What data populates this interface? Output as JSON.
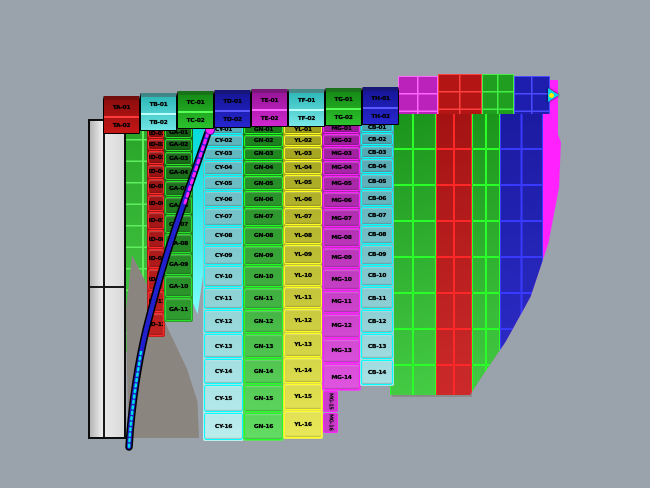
{
  "viewport": {
    "app_hint": "3d-cad-viewport",
    "colors": {
      "background": "#9aa2ab",
      "shadow": "#8a857f",
      "slab_fill": "#dcdcdc",
      "slab_edge": "#0d0d0d"
    }
  },
  "top_row": [
    {
      "name": "red-block",
      "fill_top": "#8f0e0e",
      "fill_bottom": "#c41616",
      "line": "#ff3a3a",
      "labels": [
        "TA-01",
        "TA-02"
      ]
    },
    {
      "name": "cyan-block",
      "fill_top": "#2fb9b9",
      "fill_bottom": "#6fe4e4",
      "line": "#bdffff",
      "labels": [
        "TB-01",
        "TB-02"
      ]
    },
    {
      "name": "green-block",
      "fill_top": "#168c16",
      "fill_bottom": "#2cc22c",
      "line": "#55ff55",
      "labels": [
        "TC-01",
        "TC-02"
      ]
    },
    {
      "name": "blue-block",
      "fill_top": "#16169a",
      "fill_bottom": "#2626cf",
      "line": "#5a5aff",
      "labels": [
        "TD-01",
        "TD-02"
      ]
    },
    {
      "name": "magenta-block",
      "fill_top": "#9a169a",
      "fill_bottom": "#cf26cf",
      "line": "#ff66ff",
      "labels": [
        "TE-01",
        "TE-02"
      ]
    },
    {
      "name": "cyan-block",
      "fill_top": "#2fb9b9",
      "fill_bottom": "#79e8e8",
      "line": "#bdffff",
      "labels": [
        "TF-01",
        "TF-02"
      ]
    },
    {
      "name": "green-block",
      "fill_top": "#168c16",
      "fill_bottom": "#2cc22c",
      "line": "#55ff55",
      "labels": [
        "TG-01",
        "TG-02"
      ]
    },
    {
      "name": "blue-block",
      "fill_top": "#16169a",
      "fill_bottom": "#2626cf",
      "line": "#5a5aff",
      "labels": [
        "TH-01",
        "TH-02"
      ]
    }
  ],
  "columns": [
    {
      "name": "red-column",
      "border": "#ff2a2a",
      "fill_top": "#8e1010",
      "fill_bottom": "#c02020",
      "labels": [
        "RD-01",
        "RD-02",
        "RD-03",
        "RD-04",
        "RD-05",
        "RD-06",
        "RD-07",
        "RD-08",
        "RD-09",
        "RD-10",
        "RD-11",
        "RD-12"
      ]
    },
    {
      "name": "dark-green-column",
      "border": "#2ae02a",
      "fill_top": "#145f14",
      "fill_bottom": "#2f9e2f",
      "labels": [
        "GA-01",
        "GA-02",
        "GA-03",
        "GA-04",
        "GA-05",
        "GA-06",
        "GA-07",
        "GA-08",
        "GA-09",
        "GA-10",
        "GA-11"
      ]
    },
    {
      "name": "cyan-column",
      "border": "#00ffff",
      "fill_top": "#57b2ba",
      "fill_bottom": "#bdeeee",
      "labels": [
        "CY-01",
        "CY-02",
        "CY-03",
        "CY-04",
        "CY-05",
        "CY-06",
        "CY-07",
        "CY-08",
        "CY-09",
        "CY-10",
        "CY-11",
        "CY-12",
        "CY-13",
        "CY-14",
        "CY-15",
        "CY-16"
      ]
    },
    {
      "name": "green-column",
      "border": "#22ff22",
      "fill_top": "#187c18",
      "fill_bottom": "#63dd63",
      "labels": [
        "GN-01",
        "GN-02",
        "GN-03",
        "GN-04",
        "GN-05",
        "GN-06",
        "GN-07",
        "GN-08",
        "GN-09",
        "GN-10",
        "GN-11",
        "GN-12",
        "GN-13",
        "GN-14",
        "GN-15",
        "GN-16"
      ]
    },
    {
      "name": "yellow-column",
      "border": "#ffff22",
      "fill_top": "#9f9f1b",
      "fill_bottom": "#e8e858",
      "labels": [
        "YL-01",
        "YL-02",
        "YL-03",
        "YL-04",
        "YL-05",
        "YL-06",
        "YL-07",
        "YL-08",
        "YL-09",
        "YL-10",
        "YL-11",
        "YL-12",
        "YL-13",
        "YL-14",
        "YL-15",
        "YL-16"
      ]
    },
    {
      "name": "magenta-column",
      "border": "#ff22ff",
      "fill_top": "#9a1a9a",
      "fill_bottom": "#e055e0",
      "labels": [
        "MG-01",
        "MG-02",
        "MG-03",
        "MG-04",
        "MG-05",
        "MG-06",
        "MG-07",
        "MG-08",
        "MG-09",
        "MG-10",
        "MG-11",
        "MG-12",
        "MG-13",
        "MG-14"
      ]
    },
    {
      "name": "cyan-b-column",
      "border": "#00ffff",
      "fill_top": "#4aa2ae",
      "fill_bottom": "#a9e2e5",
      "labels": [
        "CB-01",
        "CB-02",
        "CB-03",
        "CB-04",
        "CB-05",
        "CB-06",
        "CB-07",
        "CB-08",
        "CB-09",
        "CB-10",
        "CB-11",
        "CB-12",
        "CB-13",
        "CB-14"
      ]
    }
  ],
  "magenta_tail": {
    "border": "#ff22ff",
    "fill": "#cc3ccc",
    "labels": [
      "MG-15",
      "MG-16"
    ]
  },
  "back_green_grid": {
    "fill_top": "#28a428",
    "fill_bottom": "#46cc46",
    "line": "#5fee5f"
  },
  "cyan_strip": {
    "fill_top": "#00d9d9",
    "fill_bottom": "#7dfcfc"
  },
  "bowl": {
    "rim": "#ff22ff",
    "strips": [
      {
        "name": "bowl-green-column",
        "fill_top": "#1b931b",
        "fill_bottom": "#45cc45",
        "line": "#2aff2a"
      },
      {
        "name": "bowl-red-column",
        "fill_top": "#a31212",
        "fill_bottom": "#cc2a2a",
        "line": "#ff2828"
      },
      {
        "name": "bowl-green-b-column",
        "fill_top": "#1b931b",
        "fill_bottom": "#45cc45",
        "line": "#2aff2a"
      },
      {
        "name": "bowl-blue-column",
        "fill_top": "#1a1aa0",
        "fill_bottom": "#2e2ecc",
        "line": "#3a3aff"
      }
    ]
  },
  "back_strips": [
    {
      "name": "back-magenta-column",
      "fill": "#bb22bb",
      "line": "#ff66ff"
    },
    {
      "name": "back-red-column",
      "fill": "#b31414",
      "line": "#ff4040"
    },
    {
      "name": "back-green-column",
      "fill": "#1f9e1f",
      "line": "#44ee44"
    },
    {
      "name": "back-blue-column",
      "fill": "#1d1dae",
      "line": "#4b4bff"
    },
    {
      "name": "back-magenta-rim",
      "fill": "#ff22ff",
      "line": "#ff22ff"
    }
  ],
  "curve": {
    "outline": "#000000",
    "stroke": "#2020cc",
    "dash": "#ff22ff",
    "dots": "#00e0e0",
    "blob": "#ff22ff"
  },
  "marker": {
    "body": "#00d5ee",
    "dot": "#ffee00"
  }
}
